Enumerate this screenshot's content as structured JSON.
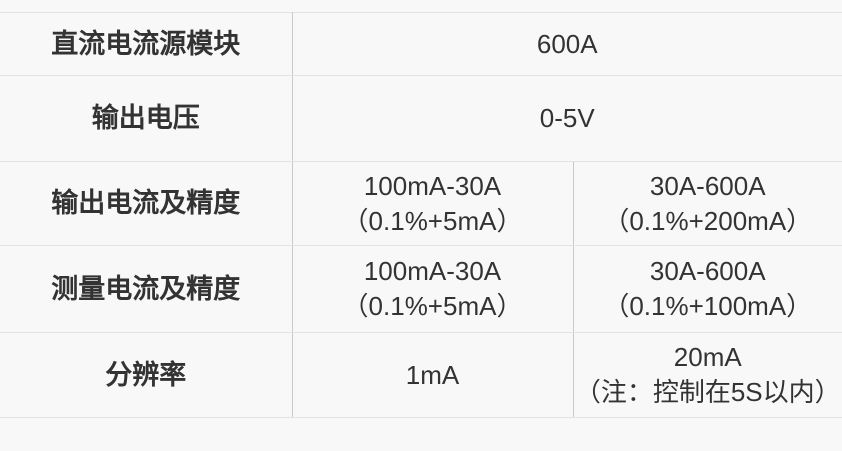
{
  "colors": {
    "page_background": "#f8f8f8",
    "horizontal_rule": "#e3e3e3",
    "vertical_rule": "#c9c9c9",
    "text": "#333333"
  },
  "spec_table": {
    "rows": [
      {
        "label": "直流电流源模块",
        "value": "600A"
      },
      {
        "label": "输出电压",
        "value": "0-5V"
      },
      {
        "label": "输出电流及精度",
        "range_low": "100mA-30A",
        "accuracy_low": "（0.1%+5mA）",
        "range_high": "30A-600A",
        "accuracy_high": "（0.1%+200mA）"
      },
      {
        "label": "测量电流及精度",
        "range_low": "100mA-30A",
        "accuracy_low": "（0.1%+5mA）",
        "range_high": "30A-600A",
        "accuracy_high": "（0.1%+100mA）"
      },
      {
        "label": "分辨率",
        "value_low": "1mA",
        "value_high": "20mA",
        "value_high_note": "（注：控制在5S以内）"
      }
    ]
  }
}
